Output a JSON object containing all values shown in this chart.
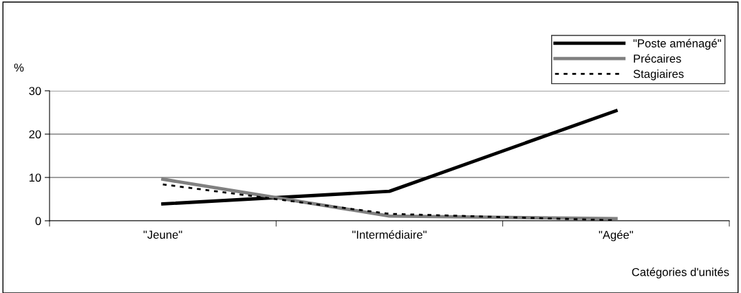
{
  "chart_data": {
    "type": "line",
    "xlabel": "Catégories d'unités",
    "ylabel": "%",
    "categories": [
      "\"Jeune\"",
      "\"Intermédiaire\"",
      "\"Agée\""
    ],
    "series": [
      {
        "name": "\"Poste aménagé\"",
        "color": "#000000",
        "values": [
          3.9,
          6.8,
          25.4
        ],
        "line_style": "solid"
      },
      {
        "name": "Précaires",
        "color": "#808080",
        "values": [
          9.6,
          1.1,
          0.5
        ],
        "line_style": "solid"
      },
      {
        "name": "Stagiaires",
        "color": "#000000",
        "values": [
          8.4,
          1.6,
          0.1
        ],
        "line_style": "dotted"
      }
    ],
    "ylim": [
      0,
      30
    ],
    "yticks": [
      0,
      10,
      20,
      30
    ],
    "grid": "y",
    "legend": "top right",
    "marker": "none"
  }
}
